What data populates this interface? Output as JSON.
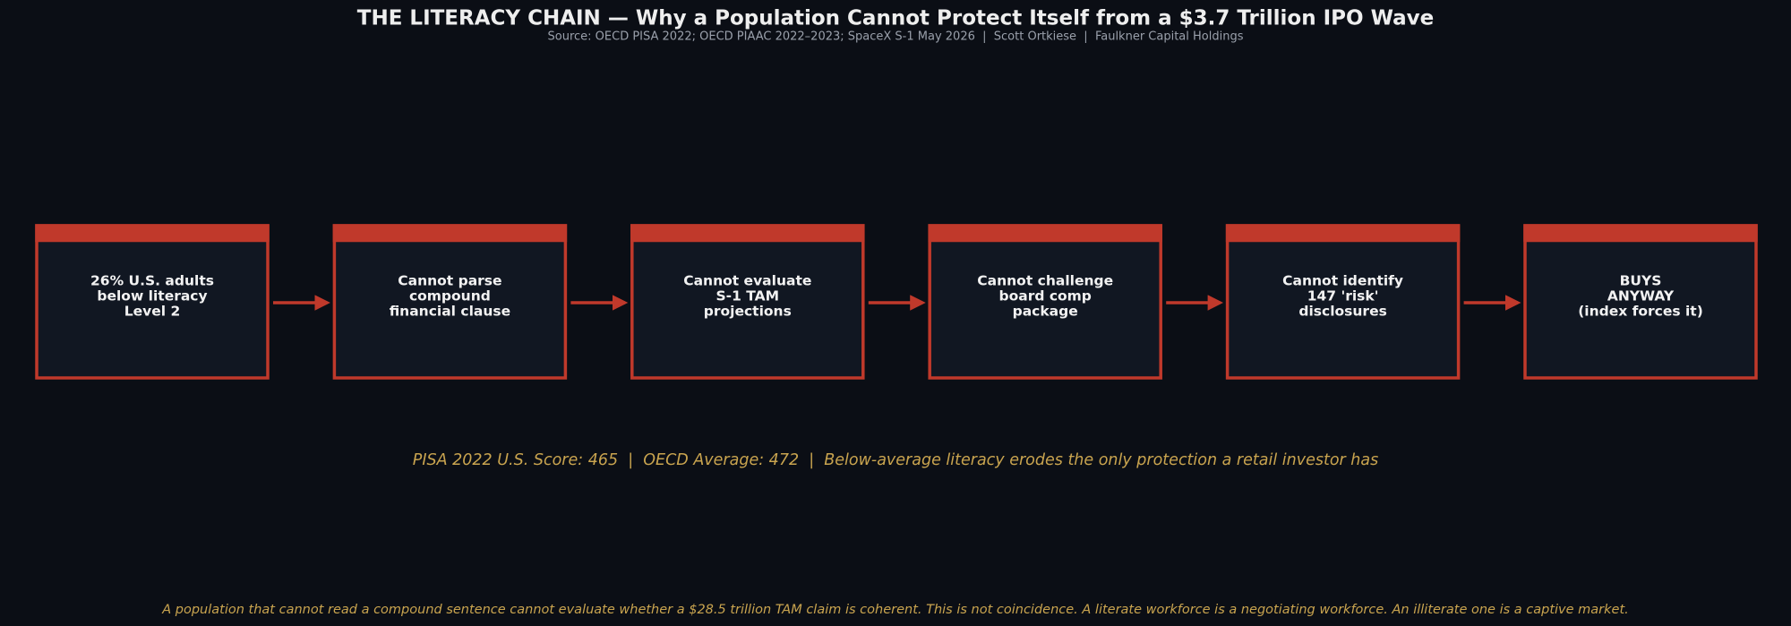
{
  "header": {
    "title": "THE LITERACY CHAIN — Why a Population Cannot Protect Itself from a $3.7 Trillion IPO Wave",
    "subtitle": "Source: OECD PISA 2022; OECD PIAAC 2022–2023; SpaceX S-1 May 2026  |  Scott Ortkiese  |  Faulkner Capital Holdings"
  },
  "nodes": [
    {
      "lines": [
        "26% U.S. adults",
        "below literacy",
        "Level 2"
      ]
    },
    {
      "lines": [
        "Cannot parse",
        "compound",
        "financial clause"
      ]
    },
    {
      "lines": [
        "Cannot evaluate",
        "S-1 TAM",
        "projections"
      ]
    },
    {
      "lines": [
        "Cannot challenge",
        "board comp",
        "package"
      ]
    },
    {
      "lines": [
        "Cannot identify",
        "147 'risk'",
        "disclosures"
      ]
    },
    {
      "lines": [
        "BUYS",
        "ANYWAY",
        "(index forces it)"
      ]
    }
  ],
  "note": "PISA 2022 U.S. Score: 465  |  OECD Average: 472  |  Below-average literacy erodes the only protection a retail investor has",
  "caption": "A population that cannot read a compound sentence cannot evaluate whether a $28.5 trillion TAM claim is coherent. This is not coincidence. A literate workforce is a negotiating workforce. An illiterate one is a captive market."
}
